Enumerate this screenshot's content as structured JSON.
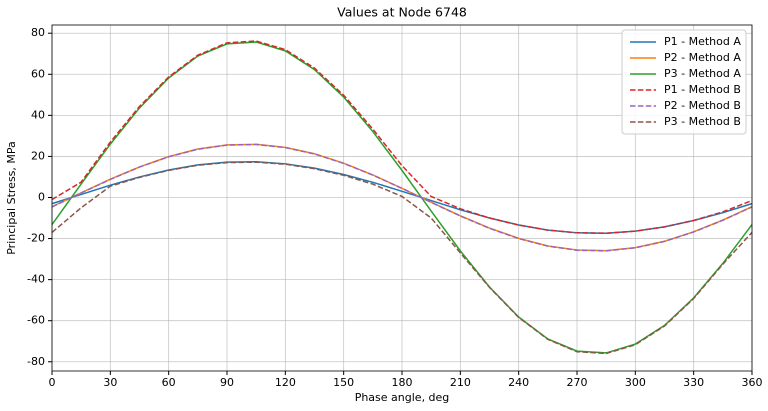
{
  "chart_data": {
    "type": "line",
    "title": "Values at Node 6748",
    "x_label": "Phase angle, deg",
    "y_label": "Principal Stress, MPa",
    "x": [
      0,
      15,
      30,
      45,
      60,
      75,
      90,
      105,
      120,
      135,
      150,
      165,
      180,
      195,
      210,
      225,
      240,
      255,
      270,
      285,
      300,
      315,
      330,
      345,
      360
    ],
    "series": [
      {
        "name": "P1 - Method A",
        "color": "#1f77b4",
        "linestyle": "solid",
        "values": [
          -3.0,
          1.5,
          6.0,
          10.0,
          13.4,
          15.9,
          17.2,
          17.4,
          16.4,
          14.3,
          11.2,
          7.4,
          3.0,
          -1.5,
          -6.0,
          -10.0,
          -13.4,
          -15.9,
          -17.2,
          -17.4,
          -16.4,
          -14.3,
          -11.2,
          -7.4,
          -3.0
        ]
      },
      {
        "name": "P2 - Method A",
        "color": "#ff7f0e",
        "linestyle": "solid",
        "values": [
          -4.5,
          2.3,
          8.9,
          14.9,
          19.9,
          23.6,
          25.6,
          25.9,
          24.4,
          21.3,
          16.7,
          11.0,
          4.5,
          -2.3,
          -8.9,
          -14.9,
          -19.9,
          -23.6,
          -25.6,
          -25.9,
          -24.4,
          -21.3,
          -16.7,
          -11.0,
          -4.5
        ]
      },
      {
        "name": "P3 - Method A",
        "color": "#2ca02c",
        "linestyle": "solid",
        "values": [
          -13.2,
          6.6,
          26.0,
          43.6,
          58.2,
          68.9,
          74.8,
          75.7,
          71.4,
          62.3,
          48.9,
          32.1,
          13.2,
          -6.6,
          -26.0,
          -43.6,
          -58.2,
          -68.9,
          -74.8,
          -75.7,
          -71.4,
          -62.3,
          -48.9,
          -32.1,
          -13.2
        ]
      },
      {
        "name": "P1 - Method B",
        "color": "#d62728",
        "linestyle": "dashed",
        "values": [
          -1.0,
          7.5,
          27.0,
          44.3,
          58.7,
          69.3,
          75.3,
          76.2,
          72.0,
          63.0,
          49.8,
          33.3,
          15.5,
          0.5,
          -5.5,
          -10.0,
          -13.4,
          -15.9,
          -17.2,
          -17.4,
          -16.4,
          -14.3,
          -11.2,
          -7.0,
          -1.5
        ]
      },
      {
        "name": "P2 - Method B",
        "color": "#9467bd",
        "linestyle": "dashed",
        "values": [
          -4.6,
          2.2,
          8.8,
          14.8,
          19.8,
          23.5,
          25.5,
          25.8,
          24.3,
          21.2,
          16.6,
          10.9,
          4.4,
          -2.4,
          -9.0,
          -15.0,
          -20.0,
          -23.7,
          -25.7,
          -26.0,
          -24.5,
          -21.4,
          -16.8,
          -11.1,
          -4.6
        ]
      },
      {
        "name": "P3 - Method B",
        "color": "#8c564b",
        "linestyle": "dashed",
        "values": [
          -17.0,
          -5.0,
          5.5,
          9.8,
          13.2,
          15.7,
          17.0,
          17.2,
          16.2,
          14.0,
          10.8,
          6.5,
          0.5,
          -10.0,
          -27.0,
          -43.8,
          -58.4,
          -69.1,
          -75.1,
          -76.0,
          -71.7,
          -62.6,
          -49.2,
          -32.5,
          -17.0
        ]
      }
    ],
    "xlim": [
      0,
      360
    ],
    "xticks": [
      0,
      30,
      60,
      90,
      120,
      150,
      180,
      210,
      240,
      270,
      300,
      330,
      360
    ],
    "ylim": [
      -84.5,
      84
    ],
    "yticks": [
      -80,
      -60,
      -40,
      -20,
      0,
      20,
      40,
      60,
      80
    ],
    "grid": true,
    "legend": "upper right"
  }
}
